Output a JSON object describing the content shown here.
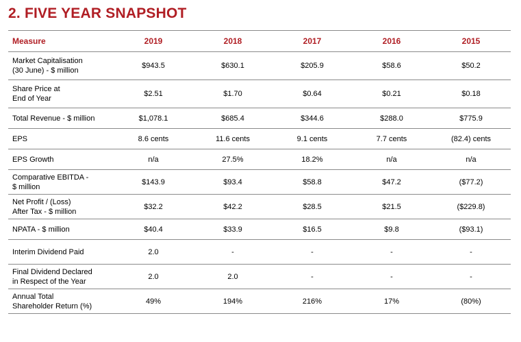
{
  "page": {
    "title": "2.  FIVE YEAR SNAPSHOT"
  },
  "colors": {
    "accent": "#b01e24",
    "rule": "#8a8a8a"
  },
  "table": {
    "headers": [
      "Measure",
      "2019",
      "2018",
      "2017",
      "2016",
      "2015"
    ],
    "rows": [
      {
        "label_line1": "Market Capitalisation",
        "label_line2": "(30 June) - $ million",
        "values": [
          "$943.5",
          "$630.1",
          "$205.9",
          "$58.6",
          "$50.2"
        ]
      },
      {
        "label_line1": "Share Price at",
        "label_line2": "End of Year",
        "values": [
          "$2.51",
          "$1.70",
          "$0.64",
          "$0.21",
          "$0.18"
        ]
      },
      {
        "label_line1": "Total Revenue - $ million",
        "label_line2": "",
        "values": [
          "$1,078.1",
          "$685.4",
          "$344.6",
          "$288.0",
          "$775.9"
        ]
      },
      {
        "label_line1": "EPS",
        "label_line2": "",
        "values": [
          "8.6 cents",
          "11.6 cents",
          "9.1 cents",
          "7.7 cents",
          "(82.4) cents"
        ]
      },
      {
        "label_line1": "EPS Growth",
        "label_line2": "",
        "values": [
          "n/a",
          "27.5%",
          "18.2%",
          "n/a",
          "n/a"
        ]
      },
      {
        "label_line1": "Comparative EBITDA -",
        "label_line2": "$ million",
        "values": [
          "$143.9",
          "$93.4",
          "$58.8",
          "$47.2",
          "($77.2)"
        ]
      },
      {
        "label_line1": "Net Profit / (Loss)",
        "label_line2": "After Tax - $ million",
        "values": [
          "$32.2",
          "$42.2",
          "$28.5",
          "$21.5",
          "($229.8)"
        ]
      },
      {
        "label_line1": "NPATA - $ million",
        "label_line2": "",
        "values": [
          "$40.4",
          "$33.9",
          "$16.5",
          "$9.8",
          "($93.1)"
        ]
      },
      {
        "label_line1": "Interim Dividend Paid",
        "label_line2": "",
        "values": [
          "2.0",
          "-",
          "-",
          "-",
          "-"
        ]
      },
      {
        "label_line1": "Final Dividend Declared",
        "label_line2": "in Respect of the Year",
        "values": [
          "2.0",
          "2.0",
          "-",
          "-",
          "-"
        ]
      },
      {
        "label_line1": "Annual Total",
        "label_line2": "Shareholder Return (%)",
        "values": [
          "49%",
          "194%",
          "216%",
          "17%",
          "(80%)"
        ]
      }
    ]
  }
}
